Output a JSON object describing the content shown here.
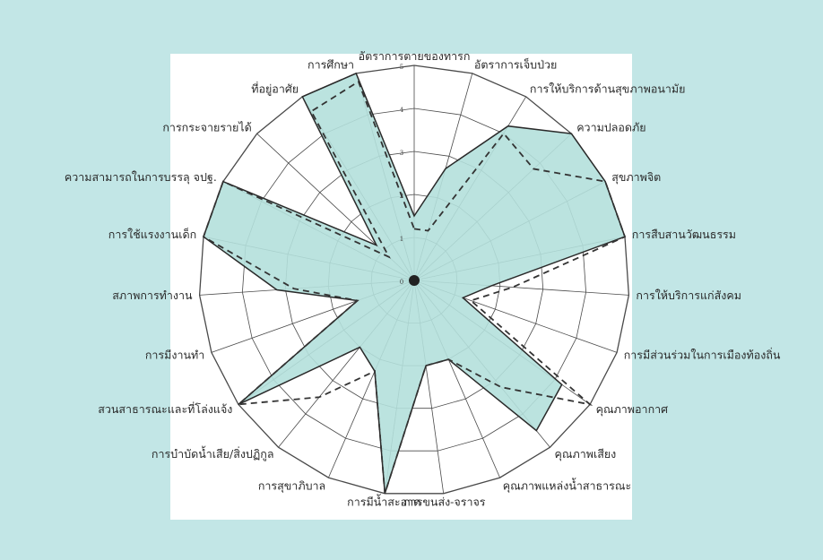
{
  "chart_data": {
    "type": "radar",
    "title": "",
    "r_range": [
      0,
      5
    ],
    "r_ticks": [
      "0",
      "1",
      "2",
      "3",
      "4",
      "5"
    ],
    "grid": true,
    "categories": [
      "อัตราการตายของทารก",
      "อัตราการเจ็บป่วย",
      "การให้บริการด้านสุขภาพอนามัย",
      "ความปลอดภัย",
      "สุขภาพจิต",
      "การสืบสานวัฒนธรรม",
      "การให้บริการแก่สังคม",
      "การมีส่วนร่วมในการเมืองท้องถิ่น",
      "คุณภาพอากาศ",
      "คุณภาพเสียง",
      "คุณภาพแหล่งน้ำสาธารณะ",
      "การขนส่ง-จราจร",
      "การมีน้ำสะอาด",
      "การสุขาภิบาล",
      "การบำบัดน้ำเสีย/สิ่งปฏิกูล",
      "สวนสาธารณะและที่โล่งแจ้ง",
      "การมีงานทำ",
      "สภาพการทำงาน",
      "การใช้แรงงานเด็ก",
      "ความสามารถในการบรรลุ จปฐ.",
      "การกระจายรายได้",
      "ที่อยู่อาศัย",
      "การศึกษา"
    ],
    "series": [
      {
        "style": "filled",
        "color": "#b4e0dc",
        "values": [
          1.5,
          2.7,
          4.2,
          5,
          5,
          5,
          1.8,
          1.2,
          4.2,
          4.5,
          2.0,
          2.0,
          5.0,
          2.3,
          2.0,
          5,
          1.4,
          3.2,
          5,
          5,
          1.2,
          5,
          5
        ]
      },
      {
        "style": "dashed",
        "color": "#333333",
        "values": [
          1.2,
          1.2,
          4.0,
          3.8,
          5.0,
          5,
          2.3,
          1.4,
          5.0,
          3.2,
          2.0,
          2.0,
          5.0,
          2.3,
          3.5,
          5,
          1.4,
          2.8,
          5,
          5,
          0.8,
          4.6,
          4.8
        ]
      }
    ]
  }
}
